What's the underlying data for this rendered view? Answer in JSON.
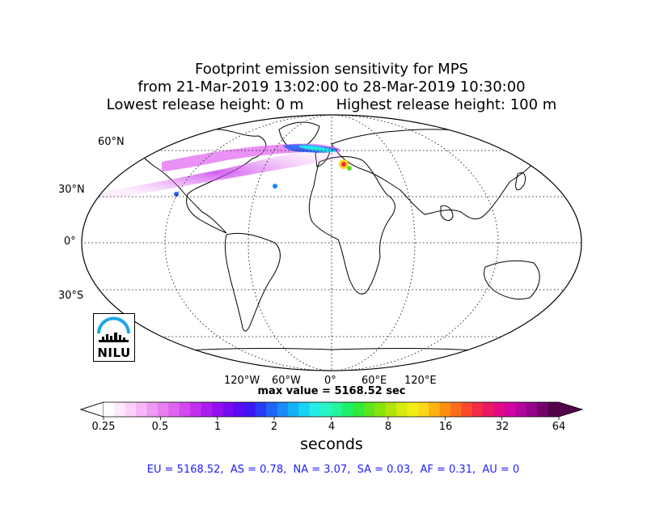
{
  "title": {
    "line1": "Footprint emission sensitivity for MPS",
    "line2": "from 21-Mar-2019 13:02:00 to 28-Mar-2019 10:30:00",
    "line3": "Lowest release height: 0 m       Highest release height: 100 m"
  },
  "map": {
    "projection": "Robinson",
    "lat_labels": [
      "60°N",
      "30°N",
      "0°",
      "30°S"
    ],
    "lon_labels": [
      "120°W",
      "60°W",
      "0°",
      "60°E",
      "120°E"
    ]
  },
  "max_value": "max value = 5168.52 sec",
  "colorbar": {
    "ticks": [
      "0.25",
      "0.5",
      "1",
      "2",
      "4",
      "8",
      "16",
      "32",
      "64"
    ],
    "units": "seconds",
    "colors": [
      "#ffffff",
      "#ffe9fd",
      "#fdd1fb",
      "#f7b6f7",
      "#f09af4",
      "#e77ff1",
      "#df63ef",
      "#d347ee",
      "#c32fee",
      "#ad1cee",
      "#9210f0",
      "#760cf2",
      "#5a0cf3",
      "#3d18f5",
      "#2a3cf7",
      "#2263f8",
      "#1b8af8",
      "#16b0f7",
      "#18d2f3",
      "#22eee7",
      "#27f5c5",
      "#24f59a",
      "#1ff06a",
      "#2fe93b",
      "#5ce51e",
      "#87e30d",
      "#b0e50b",
      "#d6ea0e",
      "#f2ee14",
      "#fbd717",
      "#fdb412",
      "#fd8f10",
      "#fc6d1a",
      "#f94b2c",
      "#f32c48",
      "#ec1767",
      "#e20b87",
      "#d006a3",
      "#b3059f",
      "#93048a",
      "#74036c",
      "#520248"
    ]
  },
  "regions": "EU = 5168.52,  AS = 0.78,  NA = 3.07,  SA = 0.03,  AF = 0.31,  AU = 0",
  "logo": "NILU"
}
